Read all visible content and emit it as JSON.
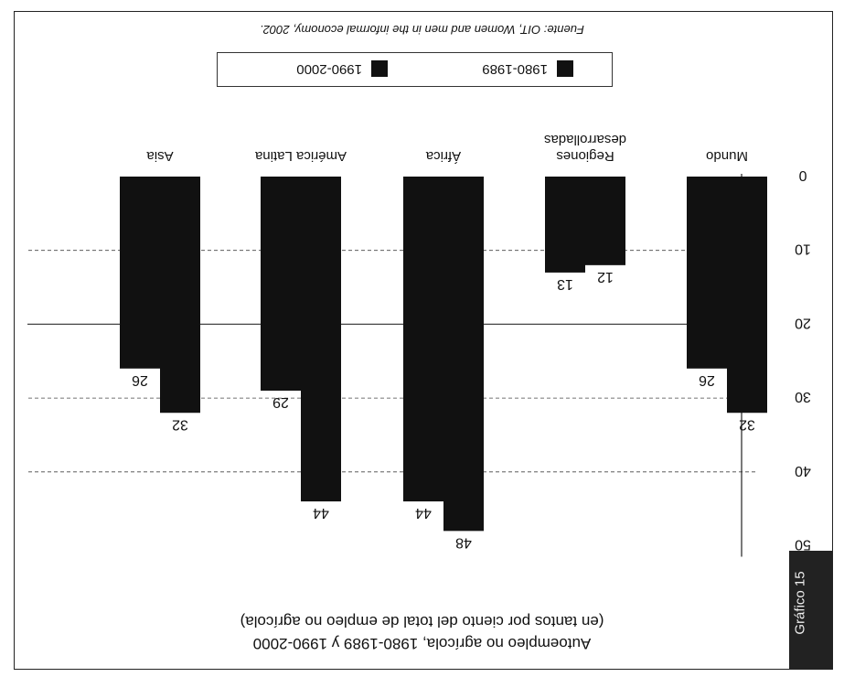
{
  "badge": "Gráfico 15",
  "chart_data": {
    "type": "bar",
    "title": "Autoempleo no agrícola, 1980-1989 y 1990-2000",
    "subtitle": "(en tantos por ciento del total de empleo no agrícola)",
    "categories": [
      "Mundo",
      "Regiones desarrolladas",
      "África",
      "América Latina",
      "Asia"
    ],
    "series": [
      {
        "name": "1980-1989",
        "values": [
          32,
          12,
          48,
          44,
          32
        ]
      },
      {
        "name": "1990-2000",
        "values": [
          26,
          13,
          44,
          29,
          26
        ]
      }
    ],
    "ticks": [
      "0",
      "10",
      "20",
      "30",
      "40",
      "50"
    ],
    "ylim": [
      0,
      50
    ],
    "grid": true,
    "legend_position": "bottom",
    "source": "Fuente: OIT, Women and men in the informal economy, 2002.",
    "colors": {
      "1980-1989": "#111111",
      "1990-2000": "#111111"
    }
  }
}
